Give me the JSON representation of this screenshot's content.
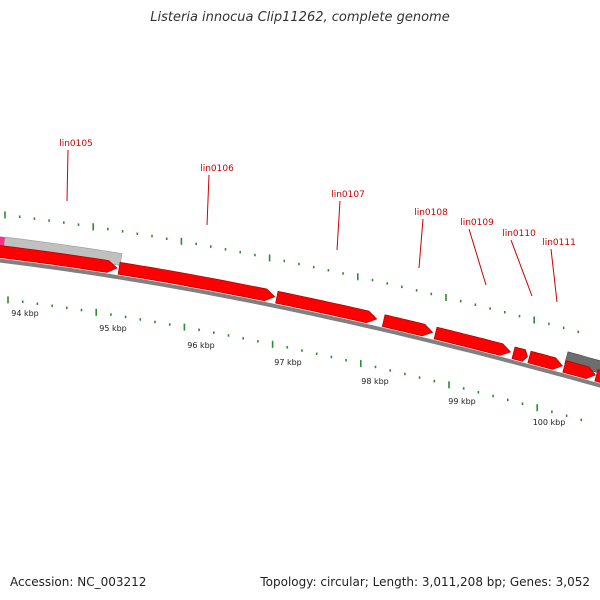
{
  "title": "Listeria innocua Clip11262, complete genome",
  "accession": "Accession: NC_003212",
  "summary": "Topology: circular; Length: 3,011,208 bp; Genes: 3,052",
  "colors": {
    "gene_forward": "#ff0000",
    "gene_outline": "#b00000",
    "gene_label": "#cc0000",
    "leader_line": "#cc0000",
    "backbone": "#808080",
    "feature_gray_light": "#c0c0c0",
    "feature_gray_dark": "#6e6e6e",
    "feature_pink": "#ff2d8a",
    "gc_tick": "#2e8b2e"
  },
  "genes": [
    {
      "name": "lin0105"
    },
    {
      "name": "lin0106"
    },
    {
      "name": "lin0107"
    },
    {
      "name": "lin0108"
    },
    {
      "name": "lin0109"
    },
    {
      "name": "lin0110"
    },
    {
      "name": "lin0111"
    }
  ],
  "scale_ticks": [
    "94 kbp",
    "95 kbp",
    "96 kbp",
    "97 kbp",
    "98 kbp",
    "99 kbp",
    "100 kbp"
  ]
}
